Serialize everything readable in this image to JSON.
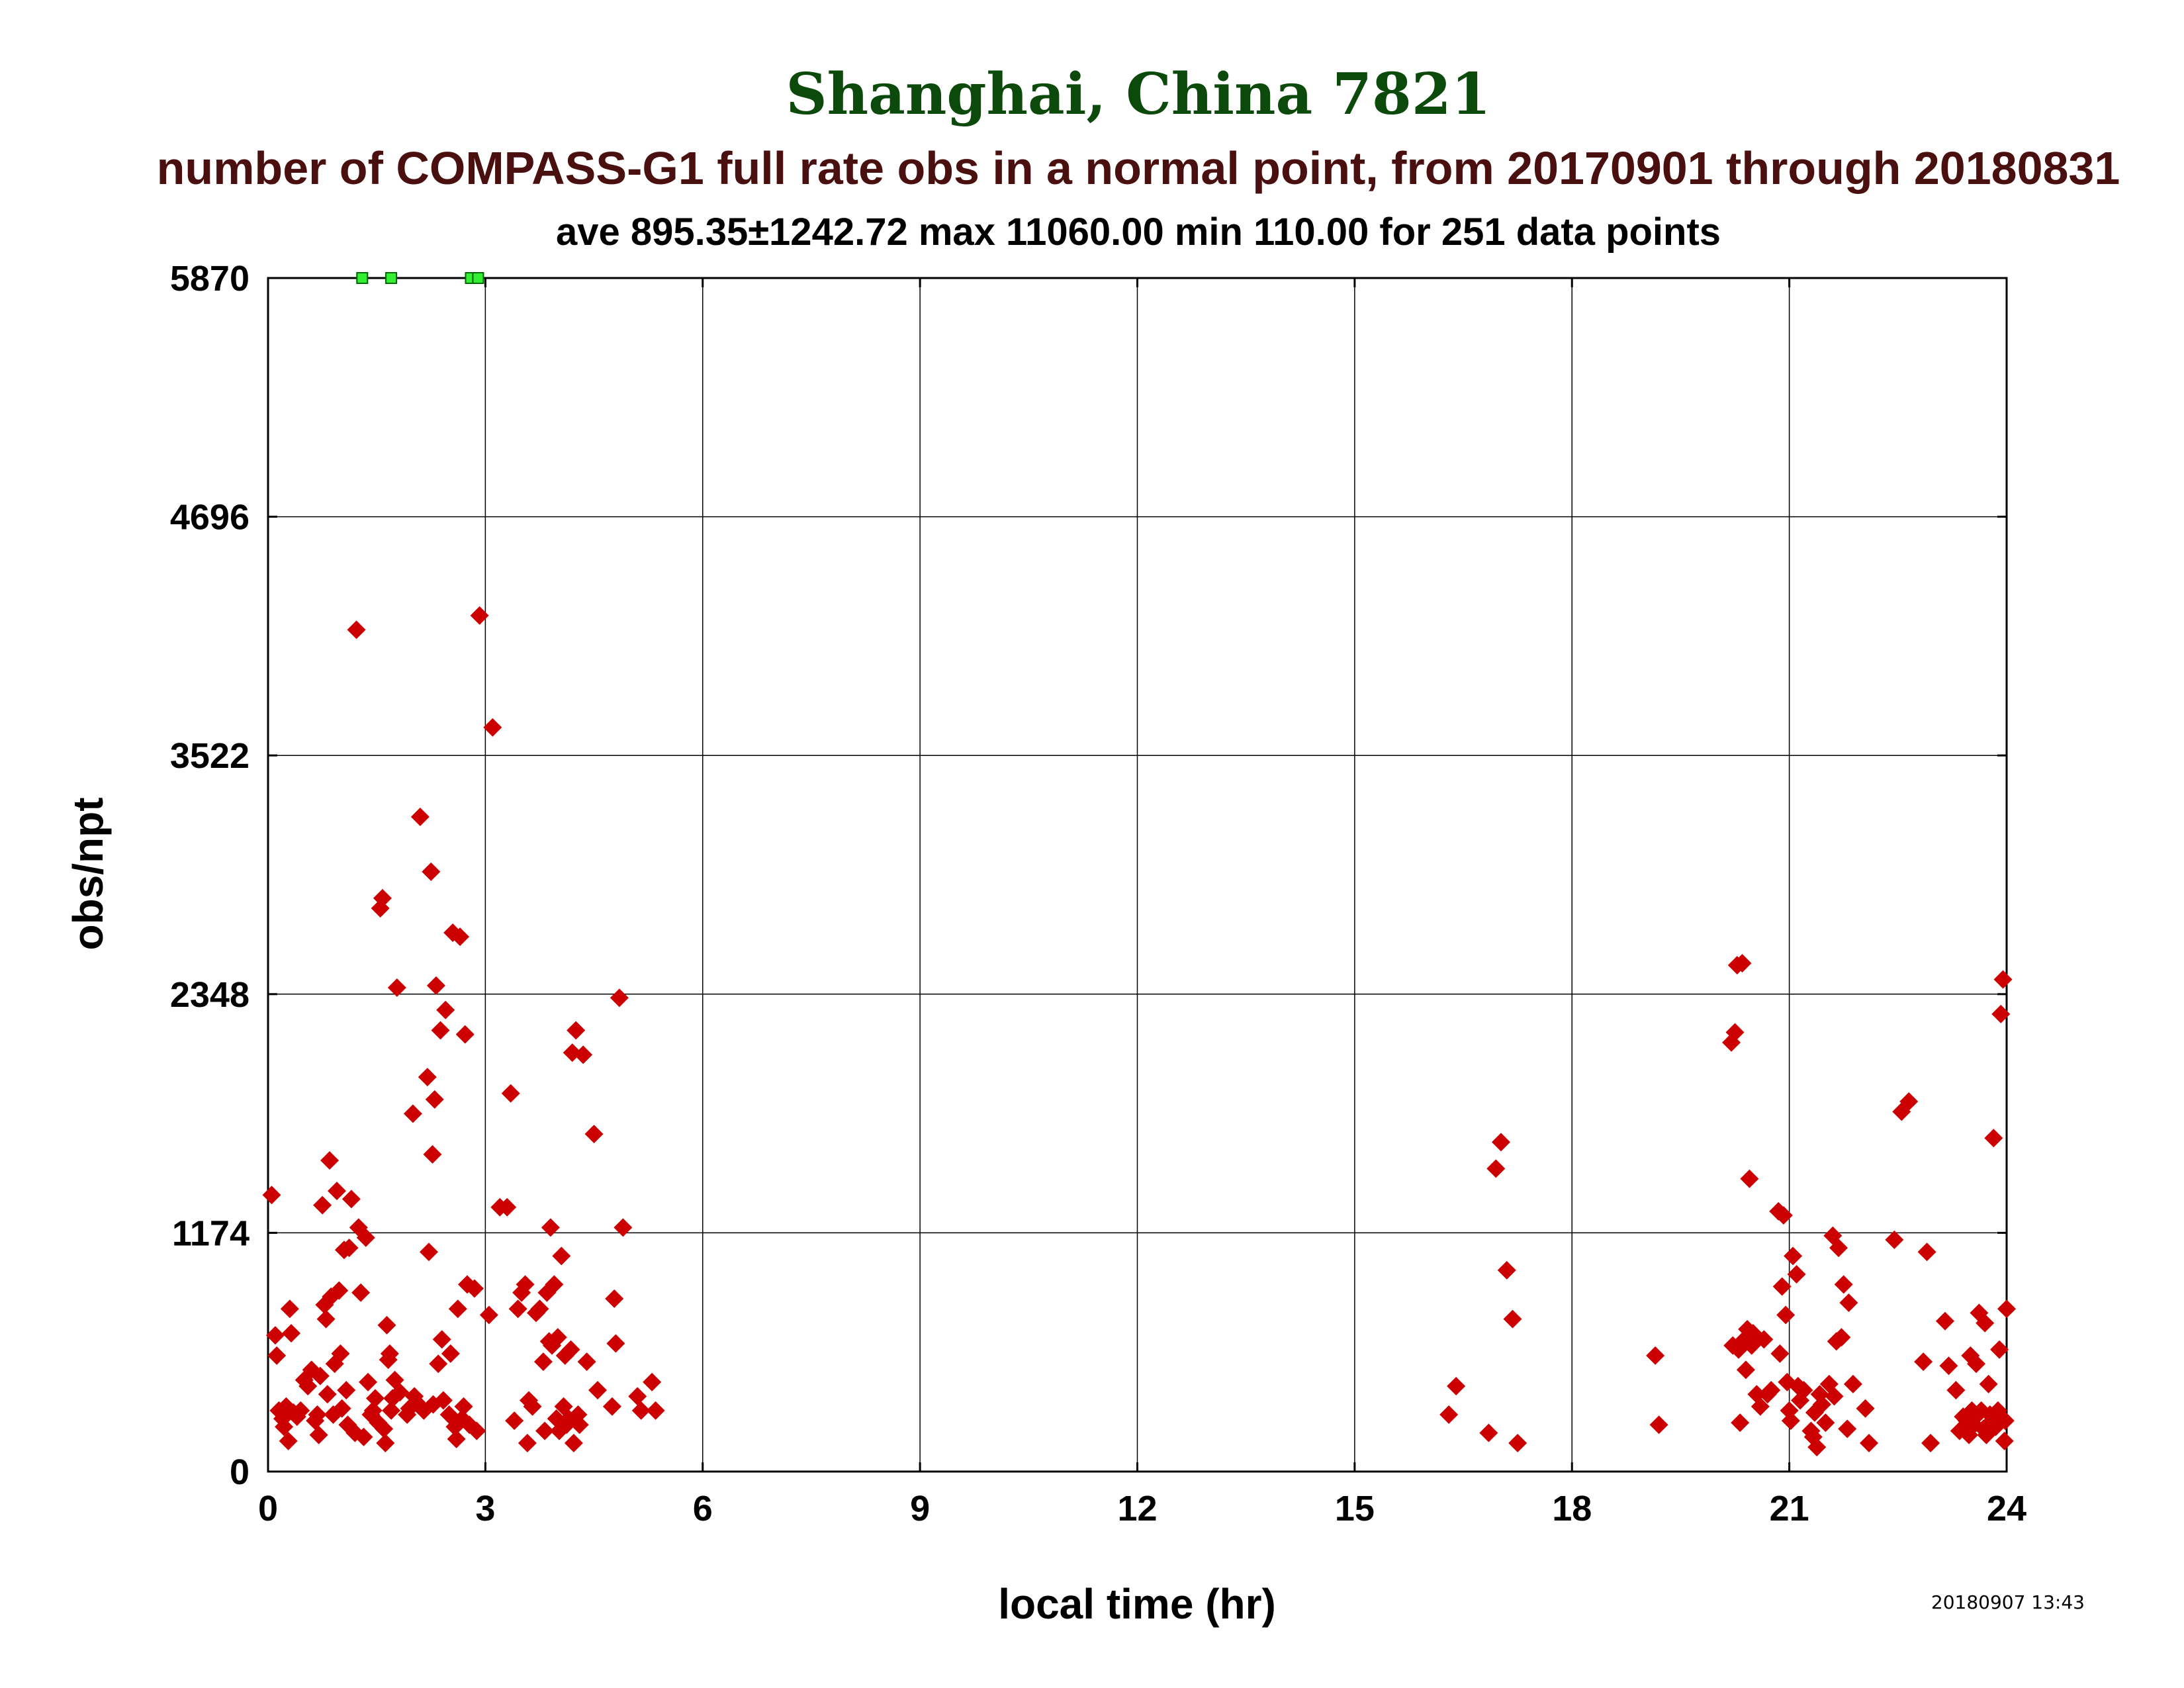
{
  "title": "Shanghai, China 7821",
  "subtitle": "number of COMPASS-G1 full rate obs in a normal point, from 20170901 through 20180831",
  "stats": "ave 895.35±1242.72 max 11060.00 min 110.00 for 251 data points",
  "xlabel": "local time (hr)",
  "ylabel": "obs/npt",
  "timestamp": "20180907 13:43",
  "colors": {
    "title": "#0b4a0b",
    "subtitle": "#4a0f0f",
    "points": "#cc0000",
    "offscale": "#33ee33"
  },
  "chart_data": {
    "type": "scatter",
    "xlim": [
      0,
      24
    ],
    "ylim": [
      0,
      5870
    ],
    "x_ticks": [
      "0",
      "3",
      "6",
      "9",
      "12",
      "15",
      "18",
      "21",
      "24"
    ],
    "y_ticks": [
      "0",
      "1174",
      "2348",
      "3522",
      "4696",
      "5870"
    ],
    "grid": true,
    "marker": "diamond",
    "offscale_marker": "square",
    "offscale_points": [
      {
        "x": 1.3,
        "y": 5870
      },
      {
        "x": 1.7,
        "y": 5870
      },
      {
        "x": 2.8,
        "y": 5870
      },
      {
        "x": 2.9,
        "y": 5870
      }
    ],
    "points": [
      {
        "x": 0.05,
        "y": 1360
      },
      {
        "x": 0.1,
        "y": 670
      },
      {
        "x": 0.12,
        "y": 570
      },
      {
        "x": 0.15,
        "y": 300
      },
      {
        "x": 0.2,
        "y": 260
      },
      {
        "x": 0.22,
        "y": 220
      },
      {
        "x": 0.25,
        "y": 320
      },
      {
        "x": 0.28,
        "y": 150
      },
      {
        "x": 0.3,
        "y": 800
      },
      {
        "x": 0.32,
        "y": 680
      },
      {
        "x": 0.35,
        "y": 290
      },
      {
        "x": 0.4,
        "y": 270
      },
      {
        "x": 0.45,
        "y": 300
      },
      {
        "x": 0.5,
        "y": 450
      },
      {
        "x": 0.55,
        "y": 420
      },
      {
        "x": 0.6,
        "y": 500
      },
      {
        "x": 0.65,
        "y": 250
      },
      {
        "x": 0.68,
        "y": 280
      },
      {
        "x": 0.7,
        "y": 180
      },
      {
        "x": 0.72,
        "y": 470
      },
      {
        "x": 0.75,
        "y": 1310
      },
      {
        "x": 0.78,
        "y": 820
      },
      {
        "x": 0.8,
        "y": 750
      },
      {
        "x": 0.82,
        "y": 380
      },
      {
        "x": 0.85,
        "y": 1530
      },
      {
        "x": 0.87,
        "y": 860
      },
      {
        "x": 0.9,
        "y": 280
      },
      {
        "x": 0.92,
        "y": 530
      },
      {
        "x": 0.95,
        "y": 1380
      },
      {
        "x": 0.98,
        "y": 890
      },
      {
        "x": 1.0,
        "y": 580
      },
      {
        "x": 1.02,
        "y": 310
      },
      {
        "x": 1.05,
        "y": 1090
      },
      {
        "x": 1.08,
        "y": 400
      },
      {
        "x": 1.1,
        "y": 230
      },
      {
        "x": 1.12,
        "y": 1100
      },
      {
        "x": 1.15,
        "y": 1340
      },
      {
        "x": 1.2,
        "y": 190
      },
      {
        "x": 1.22,
        "y": 4140
      },
      {
        "x": 1.25,
        "y": 1200
      },
      {
        "x": 1.28,
        "y": 880
      },
      {
        "x": 1.32,
        "y": 170
      },
      {
        "x": 1.35,
        "y": 1150
      },
      {
        "x": 1.38,
        "y": 440
      },
      {
        "x": 1.42,
        "y": 280
      },
      {
        "x": 1.45,
        "y": 300
      },
      {
        "x": 1.48,
        "y": 360
      },
      {
        "x": 1.52,
        "y": 240
      },
      {
        "x": 1.55,
        "y": 2770
      },
      {
        "x": 1.58,
        "y": 2820
      },
      {
        "x": 1.6,
        "y": 210
      },
      {
        "x": 1.62,
        "y": 140
      },
      {
        "x": 1.64,
        "y": 720
      },
      {
        "x": 1.66,
        "y": 550
      },
      {
        "x": 1.68,
        "y": 580
      },
      {
        "x": 1.7,
        "y": 300
      },
      {
        "x": 1.72,
        "y": 360
      },
      {
        "x": 1.75,
        "y": 450
      },
      {
        "x": 1.78,
        "y": 2380
      },
      {
        "x": 1.82,
        "y": 390
      },
      {
        "x": 1.92,
        "y": 280
      },
      {
        "x": 1.95,
        "y": 310
      },
      {
        "x": 2.0,
        "y": 1760
      },
      {
        "x": 2.02,
        "y": 370
      },
      {
        "x": 2.05,
        "y": 340
      },
      {
        "x": 2.1,
        "y": 3220
      },
      {
        "x": 2.15,
        "y": 300
      },
      {
        "x": 2.2,
        "y": 1940
      },
      {
        "x": 2.22,
        "y": 1080
      },
      {
        "x": 2.25,
        "y": 2950
      },
      {
        "x": 2.27,
        "y": 1560
      },
      {
        "x": 2.28,
        "y": 330
      },
      {
        "x": 2.3,
        "y": 1830
      },
      {
        "x": 2.32,
        "y": 2390
      },
      {
        "x": 2.35,
        "y": 530
      },
      {
        "x": 2.38,
        "y": 2170
      },
      {
        "x": 2.4,
        "y": 650
      },
      {
        "x": 2.42,
        "y": 350
      },
      {
        "x": 2.45,
        "y": 2270
      },
      {
        "x": 2.5,
        "y": 280
      },
      {
        "x": 2.52,
        "y": 580
      },
      {
        "x": 2.55,
        "y": 2650
      },
      {
        "x": 2.58,
        "y": 220
      },
      {
        "x": 2.6,
        "y": 160
      },
      {
        "x": 2.62,
        "y": 800
      },
      {
        "x": 2.65,
        "y": 2630
      },
      {
        "x": 2.68,
        "y": 260
      },
      {
        "x": 2.7,
        "y": 320
      },
      {
        "x": 2.72,
        "y": 2150
      },
      {
        "x": 2.75,
        "y": 920
      },
      {
        "x": 2.78,
        "y": 230
      },
      {
        "x": 2.85,
        "y": 900
      },
      {
        "x": 2.88,
        "y": 200
      },
      {
        "x": 2.92,
        "y": 4210
      },
      {
        "x": 3.05,
        "y": 770
      },
      {
        "x": 3.1,
        "y": 3660
      },
      {
        "x": 3.2,
        "y": 1300
      },
      {
        "x": 3.3,
        "y": 1300
      },
      {
        "x": 3.35,
        "y": 1860
      },
      {
        "x": 3.4,
        "y": 250
      },
      {
        "x": 3.45,
        "y": 800
      },
      {
        "x": 3.5,
        "y": 880
      },
      {
        "x": 3.55,
        "y": 920
      },
      {
        "x": 3.58,
        "y": 140
      },
      {
        "x": 3.6,
        "y": 350
      },
      {
        "x": 3.65,
        "y": 320
      },
      {
        "x": 3.7,
        "y": 780
      },
      {
        "x": 3.75,
        "y": 800
      },
      {
        "x": 3.8,
        "y": 540
      },
      {
        "x": 3.82,
        "y": 200
      },
      {
        "x": 3.85,
        "y": 880
      },
      {
        "x": 3.88,
        "y": 640
      },
      {
        "x": 3.9,
        "y": 1200
      },
      {
        "x": 3.92,
        "y": 620
      },
      {
        "x": 3.95,
        "y": 920
      },
      {
        "x": 3.98,
        "y": 260
      },
      {
        "x": 4.0,
        "y": 660
      },
      {
        "x": 4.02,
        "y": 200
      },
      {
        "x": 4.05,
        "y": 1060
      },
      {
        "x": 4.08,
        "y": 320
      },
      {
        "x": 4.1,
        "y": 570
      },
      {
        "x": 4.12,
        "y": 230
      },
      {
        "x": 4.15,
        "y": 260
      },
      {
        "x": 4.18,
        "y": 600
      },
      {
        "x": 4.2,
        "y": 2060
      },
      {
        "x": 4.22,
        "y": 140
      },
      {
        "x": 4.25,
        "y": 2170
      },
      {
        "x": 4.28,
        "y": 280
      },
      {
        "x": 4.3,
        "y": 230
      },
      {
        "x": 4.35,
        "y": 2050
      },
      {
        "x": 4.4,
        "y": 540
      },
      {
        "x": 4.5,
        "y": 1660
      },
      {
        "x": 4.55,
        "y": 400
      },
      {
        "x": 4.75,
        "y": 320
      },
      {
        "x": 4.78,
        "y": 850
      },
      {
        "x": 4.8,
        "y": 630
      },
      {
        "x": 4.85,
        "y": 2330
      },
      {
        "x": 4.9,
        "y": 1200
      },
      {
        "x": 5.1,
        "y": 370
      },
      {
        "x": 5.15,
        "y": 300
      },
      {
        "x": 5.3,
        "y": 440
      },
      {
        "x": 5.35,
        "y": 300
      },
      {
        "x": 16.3,
        "y": 280
      },
      {
        "x": 16.4,
        "y": 420
      },
      {
        "x": 16.85,
        "y": 190
      },
      {
        "x": 16.95,
        "y": 1490
      },
      {
        "x": 17.02,
        "y": 1620
      },
      {
        "x": 17.1,
        "y": 990
      },
      {
        "x": 17.18,
        "y": 750
      },
      {
        "x": 17.25,
        "y": 140
      },
      {
        "x": 19.15,
        "y": 570
      },
      {
        "x": 19.2,
        "y": 230
      },
      {
        "x": 20.2,
        "y": 2110
      },
      {
        "x": 20.22,
        "y": 620
      },
      {
        "x": 20.25,
        "y": 2160
      },
      {
        "x": 20.28,
        "y": 2490
      },
      {
        "x": 20.3,
        "y": 600
      },
      {
        "x": 20.32,
        "y": 240
      },
      {
        "x": 20.35,
        "y": 2500
      },
      {
        "x": 20.38,
        "y": 650
      },
      {
        "x": 20.4,
        "y": 500
      },
      {
        "x": 20.42,
        "y": 700
      },
      {
        "x": 20.45,
        "y": 1440
      },
      {
        "x": 20.48,
        "y": 620
      },
      {
        "x": 20.5,
        "y": 680
      },
      {
        "x": 20.55,
        "y": 380
      },
      {
        "x": 20.6,
        "y": 320
      },
      {
        "x": 20.65,
        "y": 650
      },
      {
        "x": 20.7,
        "y": 380
      },
      {
        "x": 20.75,
        "y": 400
      },
      {
        "x": 20.85,
        "y": 1280
      },
      {
        "x": 20.87,
        "y": 580
      },
      {
        "x": 20.9,
        "y": 910
      },
      {
        "x": 20.92,
        "y": 1260
      },
      {
        "x": 20.95,
        "y": 770
      },
      {
        "x": 20.97,
        "y": 440
      },
      {
        "x": 21.0,
        "y": 300
      },
      {
        "x": 21.02,
        "y": 250
      },
      {
        "x": 21.05,
        "y": 1060
      },
      {
        "x": 21.1,
        "y": 970
      },
      {
        "x": 21.12,
        "y": 420
      },
      {
        "x": 21.15,
        "y": 350
      },
      {
        "x": 21.2,
        "y": 400
      },
      {
        "x": 21.3,
        "y": 200
      },
      {
        "x": 21.33,
        "y": 170
      },
      {
        "x": 21.35,
        "y": 290
      },
      {
        "x": 21.38,
        "y": 120
      },
      {
        "x": 21.42,
        "y": 380
      },
      {
        "x": 21.45,
        "y": 330
      },
      {
        "x": 21.5,
        "y": 240
      },
      {
        "x": 21.55,
        "y": 430
      },
      {
        "x": 21.6,
        "y": 1160
      },
      {
        "x": 21.62,
        "y": 370
      },
      {
        "x": 21.65,
        "y": 640
      },
      {
        "x": 21.68,
        "y": 1100
      },
      {
        "x": 21.72,
        "y": 660
      },
      {
        "x": 21.75,
        "y": 920
      },
      {
        "x": 21.8,
        "y": 210
      },
      {
        "x": 21.82,
        "y": 830
      },
      {
        "x": 21.88,
        "y": 430
      },
      {
        "x": 22.05,
        "y": 310
      },
      {
        "x": 22.1,
        "y": 140
      },
      {
        "x": 22.45,
        "y": 1140
      },
      {
        "x": 22.55,
        "y": 1770
      },
      {
        "x": 22.65,
        "y": 1820
      },
      {
        "x": 22.9,
        "y": 1080
      },
      {
        "x": 22.85,
        "y": 540
      },
      {
        "x": 22.95,
        "y": 140
      },
      {
        "x": 23.15,
        "y": 740
      },
      {
        "x": 23.2,
        "y": 520
      },
      {
        "x": 23.3,
        "y": 400
      },
      {
        "x": 23.35,
        "y": 200
      },
      {
        "x": 23.4,
        "y": 270
      },
      {
        "x": 23.45,
        "y": 250
      },
      {
        "x": 23.48,
        "y": 180
      },
      {
        "x": 23.5,
        "y": 570
      },
      {
        "x": 23.52,
        "y": 300
      },
      {
        "x": 23.55,
        "y": 230
      },
      {
        "x": 23.58,
        "y": 530
      },
      {
        "x": 23.6,
        "y": 280
      },
      {
        "x": 23.62,
        "y": 780
      },
      {
        "x": 23.65,
        "y": 300
      },
      {
        "x": 23.68,
        "y": 210
      },
      {
        "x": 23.7,
        "y": 730
      },
      {
        "x": 23.72,
        "y": 180
      },
      {
        "x": 23.75,
        "y": 430
      },
      {
        "x": 23.77,
        "y": 280
      },
      {
        "x": 23.8,
        "y": 250
      },
      {
        "x": 23.82,
        "y": 1640
      },
      {
        "x": 23.85,
        "y": 220
      },
      {
        "x": 23.88,
        "y": 300
      },
      {
        "x": 23.9,
        "y": 600
      },
      {
        "x": 23.92,
        "y": 2250
      },
      {
        "x": 23.95,
        "y": 2420
      },
      {
        "x": 23.97,
        "y": 150
      },
      {
        "x": 23.98,
        "y": 250
      },
      {
        "x": 24.0,
        "y": 800
      }
    ]
  }
}
